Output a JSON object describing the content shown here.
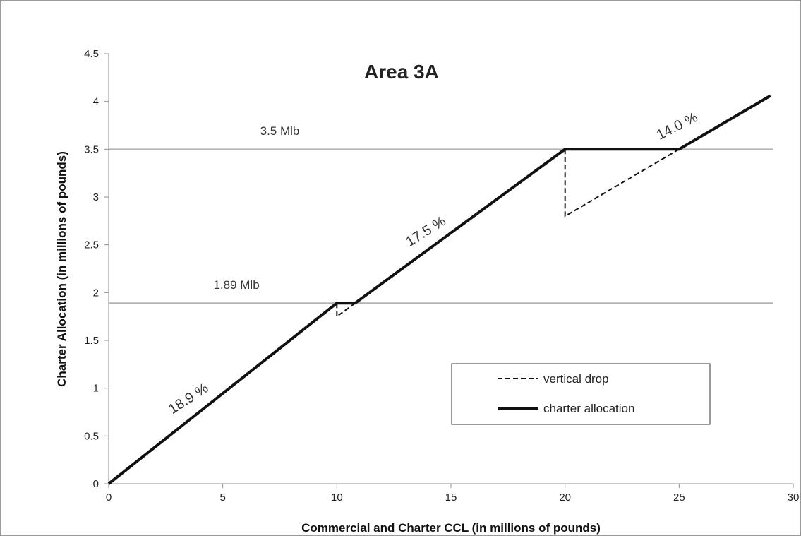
{
  "chart_data": {
    "type": "line",
    "title": "Area 3A",
    "xlabel": "Commercial and Charter CCL (in millions of pounds)",
    "ylabel": "Charter Allocation (in millions of pounds)",
    "xlim": [
      0,
      30
    ],
    "ylim": [
      0,
      4.5
    ],
    "x_ticks": [
      "0",
      "5",
      "10",
      "15",
      "20",
      "25",
      "30"
    ],
    "y_ticks": [
      "0",
      "0.5",
      "1",
      "1.5",
      "2",
      "2.5",
      "3",
      "3.5",
      "4",
      "4.5"
    ],
    "grid": false,
    "legend_position": "lower-right",
    "reference_lines": [
      {
        "y": 3.5,
        "label": "3.5 Mlb",
        "label_x": 7.5,
        "label_y": 3.65
      },
      {
        "y": 1.89,
        "label": "1.89 Mlb",
        "label_x": 5.6,
        "label_y": 2.04
      }
    ],
    "series": [
      {
        "name": "vertical drop",
        "style": "dashed",
        "segments": [
          [
            [
              10,
              1.89
            ],
            [
              10,
              1.75
            ],
            [
              10.8,
              1.89
            ]
          ],
          [
            [
              20,
              3.5
            ],
            [
              20,
              2.8
            ],
            [
              25,
              3.5
            ]
          ]
        ]
      },
      {
        "name": "charter allocation",
        "style": "solid",
        "x": [
          0,
          10,
          10.8,
          20,
          25,
          29
        ],
        "y": [
          0,
          1.89,
          1.89,
          3.5,
          3.5,
          4.06
        ]
      }
    ],
    "annotations": [
      {
        "text": "18.9 %",
        "x": 3.6,
        "y": 0.85,
        "angle": -33
      },
      {
        "text": "17.5 %",
        "x": 14.0,
        "y": 2.6,
        "angle": -32
      },
      {
        "text": "14.0 %",
        "x": 25.0,
        "y": 3.7,
        "angle": -27
      }
    ]
  }
}
